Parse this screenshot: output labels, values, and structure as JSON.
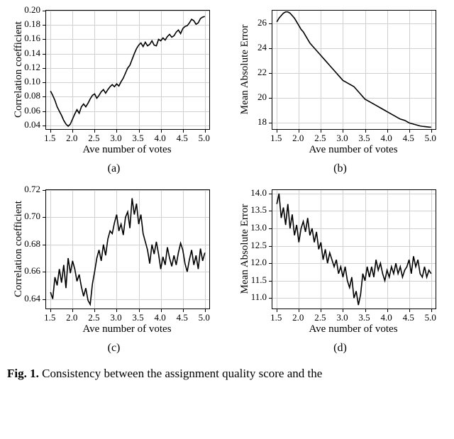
{
  "figure_bg": "#ffffff",
  "grid_color": "#d0d0d0",
  "line_color": "#000000",
  "axis_color": "#000000",
  "tick_fontsize": 13,
  "label_fontsize": 15,
  "caption_fontsize": 17,
  "panels": {
    "a": {
      "type": "line",
      "xlabel": "Ave number of votes",
      "ylabel": "Correlation coefficient",
      "xlim": [
        1.4,
        5.1
      ],
      "ylim": [
        0.035,
        0.2
      ],
      "xticks": [
        1.5,
        2.0,
        2.5,
        3.0,
        3.5,
        4.0,
        4.5,
        5.0
      ],
      "yticks": [
        0.04,
        0.06,
        0.08,
        0.1,
        0.12,
        0.14,
        0.16,
        0.18,
        0.2
      ],
      "ytick_fmt": "2",
      "line_width": 1.6,
      "grid": true,
      "x": [
        1.5,
        1.55,
        1.6,
        1.65,
        1.7,
        1.75,
        1.8,
        1.85,
        1.9,
        1.95,
        2.0,
        2.05,
        2.1,
        2.15,
        2.2,
        2.25,
        2.3,
        2.35,
        2.4,
        2.45,
        2.5,
        2.55,
        2.6,
        2.65,
        2.7,
        2.75,
        2.8,
        2.85,
        2.9,
        2.95,
        3.0,
        3.05,
        3.1,
        3.15,
        3.2,
        3.25,
        3.3,
        3.35,
        3.4,
        3.45,
        3.5,
        3.55,
        3.6,
        3.65,
        3.7,
        3.75,
        3.8,
        3.85,
        3.9,
        3.95,
        4.0,
        4.05,
        4.1,
        4.15,
        4.2,
        4.25,
        4.3,
        4.35,
        4.4,
        4.45,
        4.5,
        4.55,
        4.6,
        4.65,
        4.7,
        4.75,
        4.8,
        4.85,
        4.9,
        4.95,
        5.0
      ],
      "y": [
        0.088,
        0.082,
        0.075,
        0.066,
        0.06,
        0.054,
        0.047,
        0.042,
        0.039,
        0.042,
        0.049,
        0.056,
        0.062,
        0.057,
        0.066,
        0.07,
        0.066,
        0.071,
        0.077,
        0.082,
        0.084,
        0.078,
        0.082,
        0.087,
        0.09,
        0.085,
        0.09,
        0.094,
        0.097,
        0.094,
        0.098,
        0.095,
        0.101,
        0.106,
        0.113,
        0.12,
        0.124,
        0.132,
        0.14,
        0.147,
        0.152,
        0.155,
        0.15,
        0.156,
        0.151,
        0.153,
        0.158,
        0.152,
        0.151,
        0.16,
        0.158,
        0.162,
        0.159,
        0.164,
        0.167,
        0.163,
        0.165,
        0.17,
        0.173,
        0.168,
        0.175,
        0.178,
        0.179,
        0.183,
        0.188,
        0.186,
        0.181,
        0.183,
        0.189,
        0.191,
        0.192
      ],
      "letter": "(a)"
    },
    "b": {
      "type": "line",
      "xlabel": "Ave number of votes",
      "ylabel": "Mean Absolute Error",
      "xlim": [
        1.4,
        5.1
      ],
      "ylim": [
        17.5,
        27.0
      ],
      "xticks": [
        1.5,
        2.0,
        2.5,
        3.0,
        3.5,
        4.0,
        4.5,
        5.0
      ],
      "yticks": [
        18,
        20,
        22,
        24,
        26
      ],
      "ytick_fmt": "0",
      "line_width": 1.6,
      "grid": true,
      "x": [
        1.5,
        1.55,
        1.6,
        1.65,
        1.7,
        1.75,
        1.8,
        1.85,
        1.9,
        1.95,
        2.0,
        2.05,
        2.1,
        2.15,
        2.2,
        2.25,
        2.3,
        2.35,
        2.4,
        2.45,
        2.5,
        2.55,
        2.6,
        2.65,
        2.7,
        2.75,
        2.8,
        2.85,
        2.9,
        2.95,
        3.0,
        3.05,
        3.1,
        3.15,
        3.2,
        3.25,
        3.3,
        3.35,
        3.4,
        3.45,
        3.5,
        3.55,
        3.6,
        3.65,
        3.7,
        3.75,
        3.8,
        3.85,
        3.9,
        3.95,
        4.0,
        4.05,
        4.1,
        4.15,
        4.2,
        4.25,
        4.3,
        4.35,
        4.4,
        4.45,
        4.5,
        4.55,
        4.6,
        4.65,
        4.7,
        4.75,
        4.8,
        4.85,
        4.9,
        4.95,
        5.0
      ],
      "y": [
        26.1,
        26.4,
        26.6,
        26.8,
        26.9,
        26.9,
        26.8,
        26.6,
        26.4,
        26.1,
        25.8,
        25.5,
        25.3,
        25.0,
        24.7,
        24.4,
        24.2,
        24.0,
        23.8,
        23.6,
        23.4,
        23.2,
        23.0,
        22.8,
        22.6,
        22.4,
        22.2,
        22.0,
        21.8,
        21.6,
        21.4,
        21.3,
        21.2,
        21.1,
        21.0,
        20.9,
        20.7,
        20.5,
        20.3,
        20.1,
        19.9,
        19.8,
        19.7,
        19.6,
        19.5,
        19.4,
        19.3,
        19.2,
        19.1,
        19.0,
        18.9,
        18.8,
        18.7,
        18.6,
        18.5,
        18.4,
        18.3,
        18.25,
        18.2,
        18.1,
        18.0,
        17.95,
        17.9,
        17.85,
        17.8,
        17.75,
        17.72,
        17.7,
        17.68,
        17.66,
        17.65
      ],
      "letter": "(b)"
    },
    "c": {
      "type": "line",
      "xlabel": "Ave number of votes",
      "ylabel": "Correlation coefficient",
      "xlim": [
        1.4,
        5.1
      ],
      "ylim": [
        0.633,
        0.72
      ],
      "xticks": [
        1.5,
        2.0,
        2.5,
        3.0,
        3.5,
        4.0,
        4.5,
        5.0
      ],
      "yticks": [
        0.64,
        0.66,
        0.68,
        0.7,
        0.72
      ],
      "ytick_fmt": "2",
      "line_width": 1.6,
      "grid": true,
      "x": [
        1.5,
        1.55,
        1.6,
        1.65,
        1.7,
        1.75,
        1.8,
        1.85,
        1.9,
        1.95,
        2.0,
        2.05,
        2.1,
        2.15,
        2.2,
        2.25,
        2.3,
        2.35,
        2.4,
        2.45,
        2.5,
        2.55,
        2.6,
        2.65,
        2.7,
        2.75,
        2.8,
        2.85,
        2.9,
        2.95,
        3.0,
        3.05,
        3.1,
        3.15,
        3.2,
        3.25,
        3.3,
        3.35,
        3.4,
        3.45,
        3.5,
        3.55,
        3.6,
        3.65,
        3.7,
        3.75,
        3.8,
        3.85,
        3.9,
        3.95,
        4.0,
        4.05,
        4.1,
        4.15,
        4.2,
        4.25,
        4.3,
        4.35,
        4.4,
        4.45,
        4.5,
        4.55,
        4.6,
        4.65,
        4.7,
        4.75,
        4.8,
        4.85,
        4.9,
        4.95,
        5.0
      ],
      "y": [
        0.645,
        0.64,
        0.656,
        0.65,
        0.662,
        0.652,
        0.665,
        0.648,
        0.67,
        0.659,
        0.668,
        0.662,
        0.653,
        0.658,
        0.649,
        0.642,
        0.648,
        0.639,
        0.636,
        0.651,
        0.66,
        0.67,
        0.676,
        0.668,
        0.68,
        0.672,
        0.684,
        0.69,
        0.688,
        0.696,
        0.702,
        0.69,
        0.695,
        0.687,
        0.7,
        0.704,
        0.692,
        0.714,
        0.702,
        0.71,
        0.695,
        0.702,
        0.688,
        0.682,
        0.676,
        0.666,
        0.68,
        0.673,
        0.682,
        0.673,
        0.662,
        0.671,
        0.665,
        0.678,
        0.67,
        0.664,
        0.672,
        0.665,
        0.674,
        0.681,
        0.676,
        0.666,
        0.66,
        0.669,
        0.676,
        0.665,
        0.672,
        0.662,
        0.677,
        0.668,
        0.674
      ],
      "letter": "(c)"
    },
    "d": {
      "type": "line",
      "xlabel": "Ave number of votes",
      "ylabel": "Mean Absolute Error",
      "xlim": [
        1.4,
        5.1
      ],
      "ylim": [
        10.7,
        14.1
      ],
      "xticks": [
        1.5,
        2.0,
        2.5,
        3.0,
        3.5,
        4.0,
        4.5,
        5.0
      ],
      "yticks": [
        11.0,
        11.5,
        12.0,
        12.5,
        13.0,
        13.5,
        14.0
      ],
      "ytick_fmt": "1",
      "line_width": 1.6,
      "grid": true,
      "x": [
        1.5,
        1.55,
        1.6,
        1.65,
        1.7,
        1.75,
        1.8,
        1.85,
        1.9,
        1.95,
        2.0,
        2.05,
        2.1,
        2.15,
        2.2,
        2.25,
        2.3,
        2.35,
        2.4,
        2.45,
        2.5,
        2.55,
        2.6,
        2.65,
        2.7,
        2.75,
        2.8,
        2.85,
        2.9,
        2.95,
        3.0,
        3.05,
        3.1,
        3.15,
        3.2,
        3.25,
        3.3,
        3.35,
        3.4,
        3.45,
        3.5,
        3.55,
        3.6,
        3.65,
        3.7,
        3.75,
        3.8,
        3.85,
        3.9,
        3.95,
        4.0,
        4.05,
        4.1,
        4.15,
        4.2,
        4.25,
        4.3,
        4.35,
        4.4,
        4.45,
        4.5,
        4.55,
        4.6,
        4.65,
        4.7,
        4.75,
        4.8,
        4.85,
        4.9,
        4.95,
        5.0
      ],
      "y": [
        13.7,
        14.0,
        13.3,
        13.6,
        13.1,
        13.7,
        13.0,
        13.4,
        12.8,
        13.1,
        12.6,
        13.0,
        13.2,
        12.9,
        13.3,
        12.8,
        13.0,
        12.6,
        12.9,
        12.4,
        12.6,
        12.1,
        12.4,
        12.0,
        12.3,
        12.1,
        11.9,
        12.1,
        11.7,
        11.9,
        11.6,
        11.9,
        11.5,
        11.3,
        11.6,
        11.0,
        11.2,
        10.8,
        11.1,
        11.7,
        11.5,
        11.9,
        11.6,
        11.9,
        11.6,
        12.1,
        11.8,
        12.0,
        11.7,
        11.5,
        11.8,
        11.6,
        11.9,
        11.7,
        12.0,
        11.7,
        11.9,
        11.6,
        11.8,
        11.9,
        12.1,
        11.7,
        12.2,
        11.9,
        12.1,
        11.7,
        11.6,
        11.9,
        11.6,
        11.8,
        11.7
      ],
      "letter": "(d)"
    }
  },
  "caption_prefix": "Fig. 1.",
  "caption_rest": "  Consistency between the assignment quality score and the"
}
